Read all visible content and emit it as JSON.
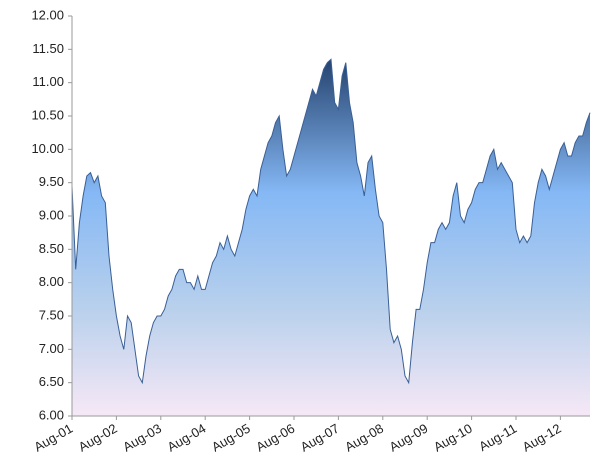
{
  "chart_data": {
    "type": "area",
    "color": "#3a5f95",
    "categories": [
      "Aug-01",
      null,
      null,
      null,
      null,
      null,
      null,
      null,
      null,
      null,
      null,
      null,
      "Aug-02",
      null,
      null,
      null,
      null,
      null,
      null,
      null,
      null,
      null,
      null,
      null,
      "Aug-03",
      null,
      null,
      null,
      null,
      null,
      null,
      null,
      null,
      null,
      null,
      null,
      "Aug-04",
      null,
      null,
      null,
      null,
      null,
      null,
      null,
      null,
      null,
      null,
      null,
      "Aug-05",
      null,
      null,
      null,
      null,
      null,
      null,
      null,
      null,
      null,
      null,
      null,
      "Aug-06",
      null,
      null,
      null,
      null,
      null,
      null,
      null,
      null,
      null,
      null,
      null,
      "Aug-07",
      null,
      null,
      null,
      null,
      null,
      null,
      null,
      null,
      null,
      null,
      null,
      "Aug-08",
      null,
      null,
      null,
      null,
      null,
      null,
      null,
      null,
      null,
      null,
      null,
      "Aug-09",
      null,
      null,
      null,
      null,
      null,
      null,
      null,
      null,
      null,
      null,
      null,
      "Aug-10",
      null,
      null,
      null,
      null,
      null,
      null,
      null,
      null,
      null,
      null,
      null,
      "Aug-11",
      null,
      null,
      null,
      null,
      null,
      null,
      null,
      null,
      null,
      null,
      null,
      "Aug-12",
      null,
      null,
      null,
      null,
      null,
      null,
      null,
      null
    ],
    "values": [
      9.45,
      8.2,
      8.9,
      9.3,
      9.6,
      9.65,
      9.5,
      9.6,
      9.3,
      9.2,
      8.4,
      7.9,
      7.5,
      7.2,
      7.0,
      7.5,
      7.4,
      7.0,
      6.6,
      6.5,
      6.9,
      7.2,
      7.4,
      7.5,
      7.5,
      7.6,
      7.8,
      7.9,
      8.1,
      8.2,
      8.2,
      8.0,
      8.0,
      7.9,
      8.1,
      7.9,
      7.9,
      8.1,
      8.3,
      8.4,
      8.6,
      8.5,
      8.7,
      8.5,
      8.4,
      8.6,
      8.8,
      9.1,
      9.3,
      9.4,
      9.3,
      9.7,
      9.9,
      10.1,
      10.2,
      10.4,
      10.5,
      10.0,
      9.6,
      9.7,
      9.9,
      10.1,
      10.3,
      10.5,
      10.7,
      10.9,
      10.8,
      11.0,
      11.2,
      11.3,
      11.35,
      10.7,
      10.6,
      11.1,
      11.3,
      10.7,
      10.4,
      9.8,
      9.6,
      9.3,
      9.8,
      9.9,
      9.4,
      9.0,
      8.9,
      8.2,
      7.3,
      7.1,
      7.2,
      7.0,
      6.6,
      6.5,
      7.1,
      7.6,
      7.6,
      7.9,
      8.3,
      8.6,
      8.6,
      8.8,
      8.9,
      8.8,
      8.9,
      9.3,
      9.5,
      9.0,
      8.9,
      9.1,
      9.2,
      9.4,
      9.5,
      9.5,
      9.7,
      9.9,
      10.0,
      9.7,
      9.8,
      9.7,
      9.6,
      9.5,
      8.8,
      8.6,
      8.7,
      8.6,
      8.7,
      9.2,
      9.5,
      9.7,
      9.6,
      9.4,
      9.6,
      9.8,
      10.0,
      10.1,
      9.9,
      9.9,
      10.1,
      10.2,
      10.2,
      10.4,
      10.55
    ],
    "ylim": [
      6,
      12
    ],
    "yticks": [
      {
        "value": 6,
        "label": "6.00"
      },
      {
        "value": 6.5,
        "label": "6.50"
      },
      {
        "value": 7,
        "label": "7.00"
      },
      {
        "value": 7.5,
        "label": "7.50"
      },
      {
        "value": 8,
        "label": "8.00"
      },
      {
        "value": 8.5,
        "label": "8.50"
      },
      {
        "value": 9,
        "label": "9.00"
      },
      {
        "value": 9.5,
        "label": "9.50"
      },
      {
        "value": 10,
        "label": "10.00"
      },
      {
        "value": 10.5,
        "label": "10.50"
      },
      {
        "value": 11,
        "label": "11.00"
      },
      {
        "value": 11.5,
        "label": "11.50"
      },
      {
        "value": 12,
        "label": "12.00"
      }
    ],
    "grid": false
  }
}
